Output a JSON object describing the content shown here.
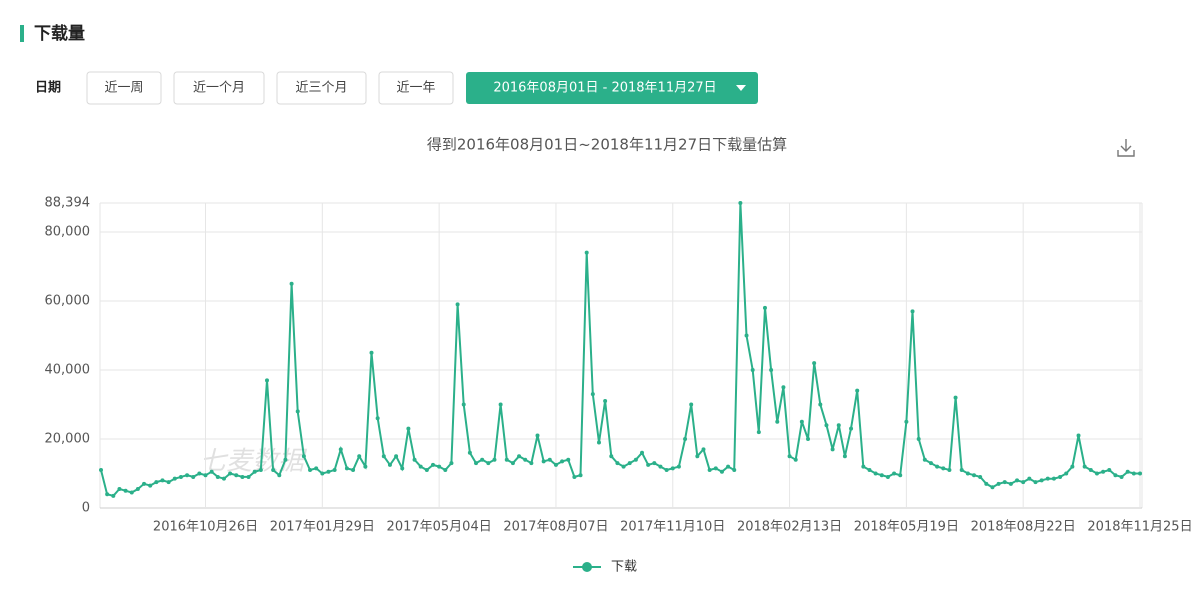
{
  "header": {
    "title": "下载量"
  },
  "filters": {
    "label": "日期",
    "buttons": [
      "近一周",
      "近一个月",
      "近三个月",
      "近一年"
    ],
    "range": "2016年08月01日 - 2018年11月27日"
  },
  "chart_data": {
    "type": "line",
    "title": "得到2016年08月01日~2018年11月27日下载量估算",
    "watermark": "七麦数据",
    "categories": [
      null,
      null,
      null,
      null,
      null,
      null,
      null,
      null,
      null,
      null,
      null,
      null,
      null,
      null,
      null,
      null,
      null,
      "2016年10月26日",
      null,
      null,
      null,
      null,
      null,
      null,
      null,
      null,
      null,
      null,
      null,
      null,
      null,
      null,
      null,
      null,
      null,
      null,
      "2017年01月29日",
      null,
      null,
      null,
      null,
      null,
      null,
      null,
      null,
      null,
      null,
      null,
      null,
      null,
      null,
      null,
      null,
      null,
      null,
      "2017年05月04日",
      null,
      null,
      null,
      null,
      null,
      null,
      null,
      null,
      null,
      null,
      null,
      null,
      null,
      null,
      null,
      null,
      null,
      null,
      "2017年08月07日",
      null,
      null,
      null,
      null,
      null,
      null,
      null,
      null,
      null,
      null,
      null,
      null,
      null,
      null,
      null,
      null,
      null,
      null,
      "2017年11月10日",
      null,
      null,
      null,
      null,
      null,
      null,
      null,
      null,
      null,
      null,
      null,
      null,
      null,
      null,
      null,
      null,
      null,
      null,
      "2018年02月13日",
      null,
      null,
      null,
      null,
      null,
      null,
      null,
      null,
      null,
      null,
      null,
      null,
      null,
      null,
      null,
      null,
      null,
      null,
      "2018年05月19日",
      null,
      null,
      null,
      null,
      null,
      null,
      null,
      null,
      null,
      null,
      null,
      null,
      null,
      null,
      null,
      null,
      null,
      null,
      "2018年08月22日",
      null,
      null,
      null,
      null,
      null,
      null,
      null,
      null,
      null,
      null,
      null,
      null,
      null,
      null,
      null,
      null,
      null,
      null,
      "2018年11月25日"
    ],
    "series": [
      {
        "name": "下载",
        "color": "#2bb08a",
        "values": [
          11000,
          4000,
          3500,
          5500,
          5000,
          4500,
          5500,
          7000,
          6500,
          7500,
          8000,
          7500,
          8500,
          9000,
          9500,
          9000,
          10000,
          9500,
          10500,
          9000,
          8500,
          10000,
          9500,
          9000,
          9000,
          10500,
          11000,
          37000,
          11000,
          9500,
          14000,
          65000,
          28000,
          15000,
          11000,
          11500,
          10000,
          10500,
          11000,
          17000,
          11500,
          11000,
          15000,
          12000,
          45000,
          26000,
          15000,
          12500,
          15000,
          11500,
          23000,
          14000,
          12000,
          11000,
          12500,
          12000,
          11000,
          13000,
          59000,
          30000,
          16000,
          13000,
          14000,
          13000,
          14000,
          30000,
          14000,
          13000,
          15000,
          14000,
          13000,
          21000,
          13500,
          14000,
          12500,
          13500,
          14000,
          9000,
          9500,
          74000,
          33000,
          19000,
          31000,
          15000,
          13000,
          12000,
          13000,
          14000,
          16000,
          12500,
          13000,
          12000,
          11000,
          11500,
          12000,
          20000,
          30000,
          15000,
          17000,
          11000,
          11500,
          10500,
          12000,
          11000,
          88394,
          50000,
          40000,
          22000,
          58000,
          40000,
          25000,
          35000,
          15000,
          14000,
          25000,
          20000,
          42000,
          30000,
          24000,
          17000,
          24000,
          15000,
          23000,
          34000,
          12000,
          11000,
          10000,
          9500,
          9000,
          10000,
          9500,
          25000,
          57000,
          20000,
          14000,
          13000,
          12000,
          11500,
          11000,
          32000,
          11000,
          10000,
          9500,
          9000,
          7000,
          6000,
          7000,
          7500,
          7000,
          8000,
          7500,
          8500,
          7500,
          8000,
          8500,
          8500,
          9000,
          10000,
          12000,
          21000,
          12000,
          11000,
          10000,
          10500,
          11000,
          9500,
          9000,
          10500,
          10000,
          10000
        ]
      }
    ],
    "ylim": [
      0,
      88394
    ],
    "yticks": [
      0,
      {
        "value": 20000,
        "label": "20,000"
      },
      {
        "value": 40000,
        "label": "40,000"
      },
      {
        "value": 60000,
        "label": "60,000"
      },
      {
        "value": 80000,
        "label": "80,000"
      },
      {
        "value": 88394,
        "label": "88,394"
      }
    ],
    "grid": true
  }
}
